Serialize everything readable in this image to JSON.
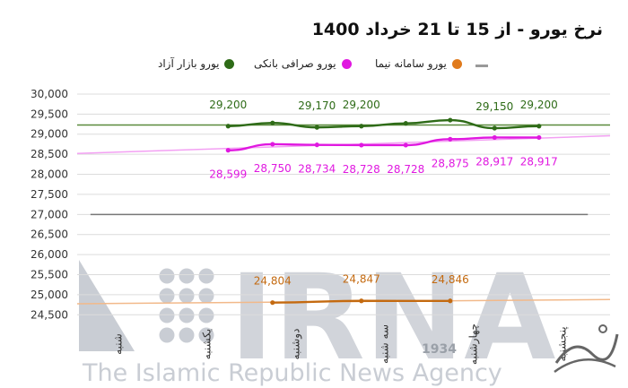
{
  "title": "نرخ یورو - از 15 تا 21 خرداد 1400",
  "legend": [
    {
      "label": "یورو بازار آزاد",
      "color": "#2e6b17"
    },
    {
      "label": "یورو صرافی بانکی",
      "color": "#e018e0"
    },
    {
      "label": "یورو سامانه نیما",
      "color": "#e07a1c"
    },
    {
      "label": "",
      "color": "#9a9a9a"
    }
  ],
  "watermark": {
    "brand": "IRNA",
    "tagline": "The Islamic Republic News Agency",
    "year": "1934"
  },
  "chart_data": {
    "type": "line",
    "categories": [
      "شنبه",
      "یکشنبه",
      "دوشنبه",
      "سه شنبه",
      "چهارشنبه",
      "پنجشنبه"
    ],
    "yticks": [
      24500,
      25000,
      25500,
      26000,
      26500,
      27000,
      27500,
      28000,
      28500,
      29000,
      29500,
      30000
    ],
    "ylim": [
      24350,
      30200
    ],
    "grid": true,
    "series": [
      {
        "name": "یورو بازار آزاد",
        "color": "#2e6b17",
        "x": [
          1.7,
          2.2,
          2.7,
          3.2,
          3.7,
          4.2,
          4.7,
          5.2
        ],
        "values": [
          29200,
          29280,
          29170,
          29200,
          29270,
          29350,
          29150,
          29200
        ],
        "labels": [
          "29,200",
          "",
          "29,170",
          "29,200",
          "",
          "",
          "29,150",
          "29,200"
        ],
        "label_pos": "above"
      },
      {
        "name": "یورو صرافی بانکی",
        "color": "#e018e0",
        "x": [
          1.7,
          2.2,
          2.7,
          3.2,
          3.7,
          4.2,
          4.7,
          5.2
        ],
        "values": [
          28599,
          28750,
          28734,
          28728,
          28728,
          28875,
          28917,
          28917
        ],
        "labels": [
          "28,599",
          "28,750",
          "28,734",
          "28,728",
          "28,728",
          "28,875",
          "28,917",
          "28,917"
        ],
        "label_pos": "below"
      },
      {
        "name": "یورو سامانه نیما",
        "color": "#c46a10",
        "x": [
          2.2,
          3.2,
          4.2
        ],
        "values": [
          24804,
          24847,
          24846
        ],
        "labels": [
          "24,804",
          "24,847",
          "24,846"
        ],
        "label_pos": "above"
      }
    ],
    "trendlines": [
      {
        "color": "#5a8a3c",
        "from": [
          0,
          29230
        ],
        "to": [
          6,
          29230
        ]
      },
      {
        "color": "#f3a0f3",
        "from": [
          0,
          28520
        ],
        "to": [
          6,
          28960
        ]
      },
      {
        "color": "#f2b98a",
        "from": [
          0,
          24775
        ],
        "to": [
          6,
          24880
        ]
      },
      {
        "color": "#777777",
        "from": [
          0.15,
          27000
        ],
        "to": [
          5.75,
          27000
        ]
      }
    ]
  }
}
